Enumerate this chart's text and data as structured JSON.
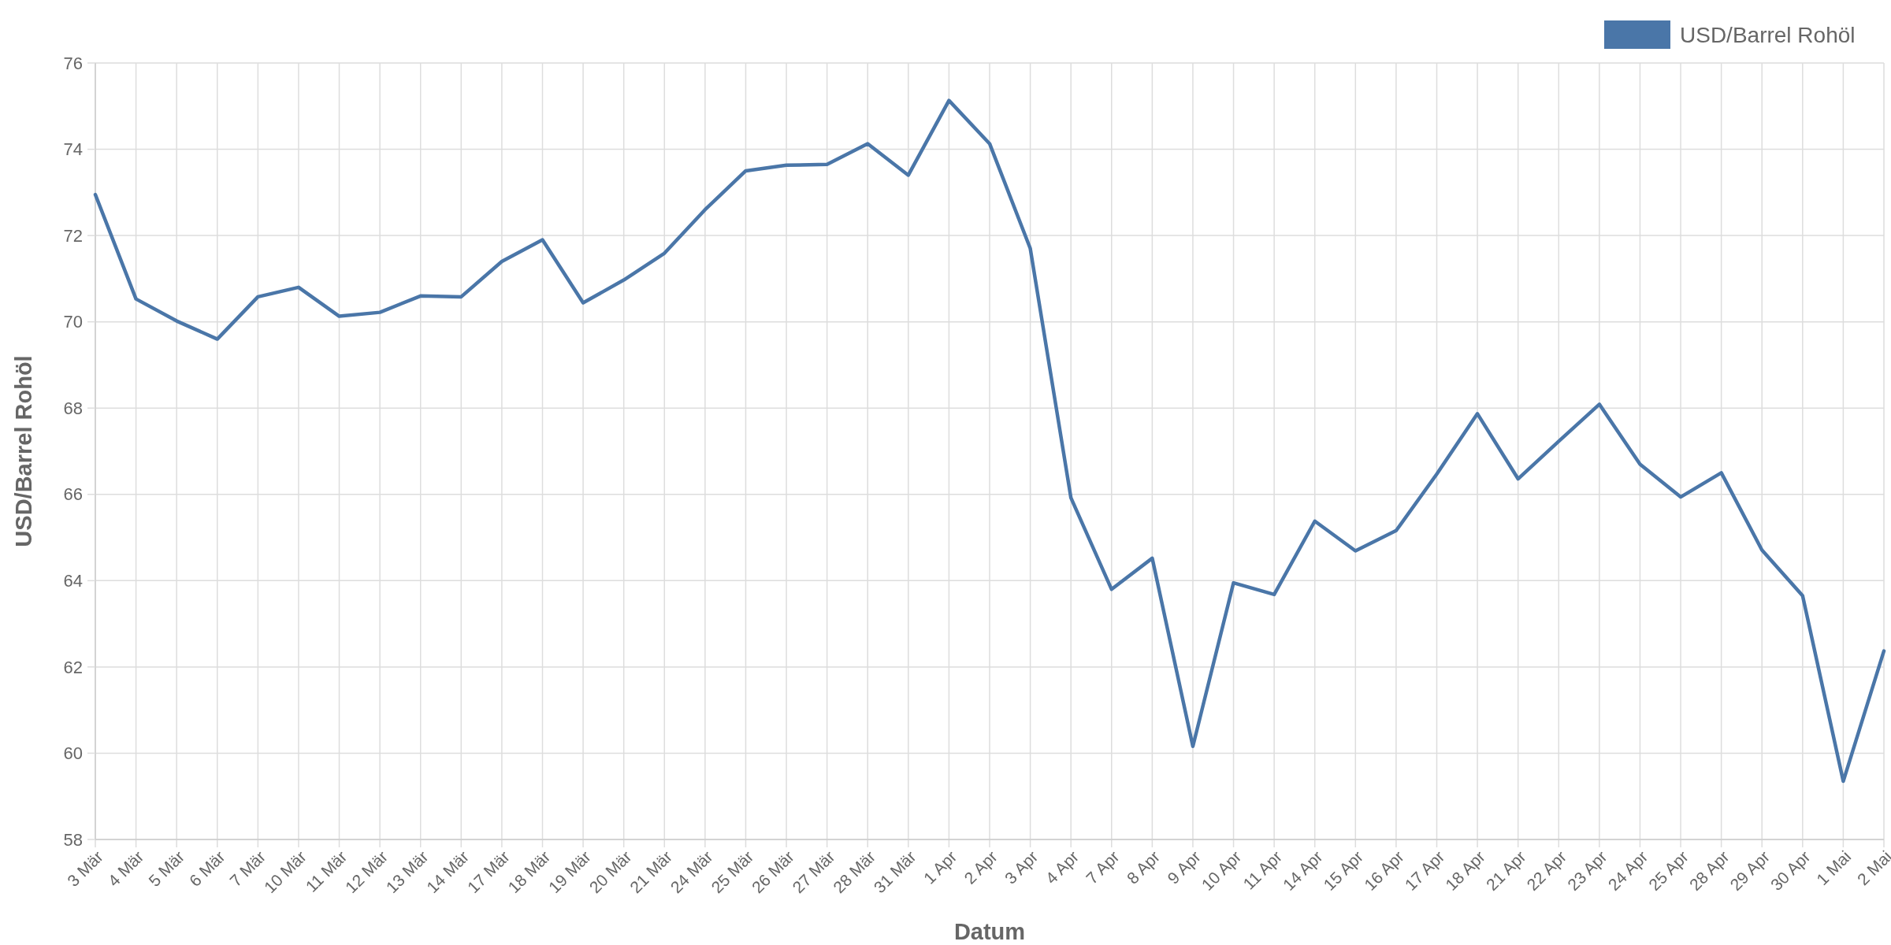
{
  "chart_data": {
    "type": "line",
    "xlabel": "Datum",
    "ylabel": "USD/Barrel Rohöl",
    "categories": [
      "3 Mär",
      "4 Mär",
      "5 Mär",
      "6 Mär",
      "7 Mär",
      "10 Mär",
      "11 Mär",
      "12 Mär",
      "13 Mär",
      "14 Mär",
      "17 Mär",
      "18 Mär",
      "19 Mär",
      "20 Mär",
      "21 Mär",
      "24 Mär",
      "25 Mär",
      "26 Mär",
      "27 Mär",
      "28 Mär",
      "31 Mär",
      "1 Apr",
      "2 Apr",
      "3 Apr",
      "4 Apr",
      "7 Apr",
      "8 Apr",
      "9 Apr",
      "10 Apr",
      "11 Apr",
      "14 Apr",
      "15 Apr",
      "16 Apr",
      "17 Apr",
      "18 Apr",
      "21 Apr",
      "22 Apr",
      "23 Apr",
      "24 Apr",
      "25 Apr",
      "28 Apr",
      "29 Apr",
      "30 Apr",
      "1 Mai",
      "2 Mai"
    ],
    "series": [
      {
        "name": "USD/Barrel Rohöl",
        "color": "#4a76a8",
        "values": [
          72.95,
          70.53,
          70.02,
          69.6,
          70.58,
          70.8,
          70.13,
          70.22,
          70.6,
          70.58,
          71.4,
          71.9,
          70.44,
          70.97,
          71.59,
          72.6,
          73.5,
          73.63,
          73.65,
          74.13,
          73.4,
          75.13,
          74.13,
          71.7,
          65.92,
          63.8,
          64.52,
          60.16,
          63.95,
          63.68,
          65.38,
          64.69,
          65.16,
          66.47,
          67.87,
          66.36,
          67.23,
          68.09,
          66.7,
          65.94,
          66.5,
          64.71,
          63.65,
          59.35,
          62.37
        ]
      }
    ],
    "ylim": [
      58,
      76
    ],
    "yticks": [
      58,
      60,
      62,
      64,
      66,
      68,
      70,
      72,
      74,
      76
    ],
    "grid": true,
    "legend": "top right",
    "marker": "none",
    "line_style": "solid"
  }
}
